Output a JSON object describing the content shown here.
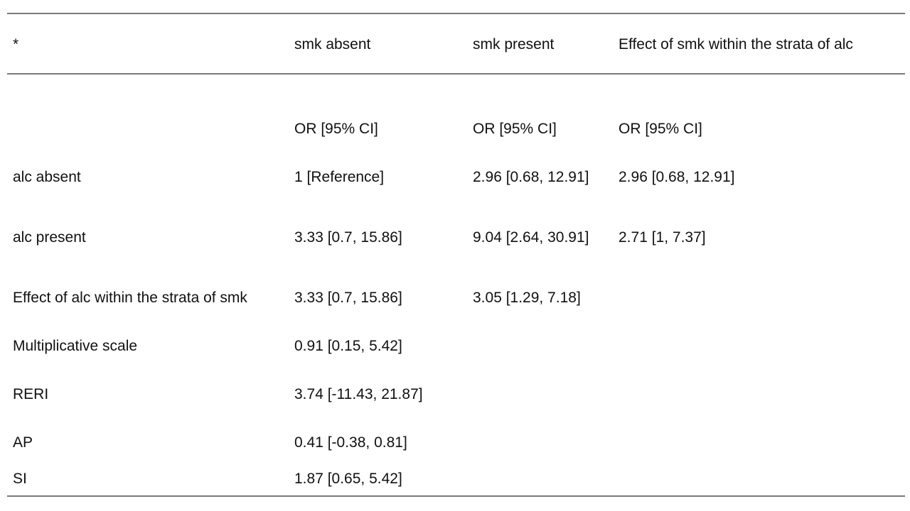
{
  "table": {
    "header": [
      "*",
      "smk absent",
      "smk present",
      "Effect of smk within the strata of alc"
    ],
    "rows": [
      [
        null,
        "OR [95% CI]",
        "OR [95% CI]",
        "OR [95% CI]"
      ],
      [
        "alc absent",
        "1 [Reference]",
        "2.96 [0.68, 12.91]",
        "2.96 [0.68, 12.91]"
      ],
      [
        "alc present",
        "3.33 [0.7, 15.86]",
        "9.04 [2.64, 30.91]",
        "2.71 [1, 7.37]"
      ],
      [
        "Effect of alc within the strata of smk",
        "3.33 [0.7, 15.86]",
        "3.05 [1.29, 7.18]",
        null
      ],
      [
        "Multiplicative scale",
        "0.91 [0.15, 5.42]",
        null,
        null
      ],
      [
        "RERI",
        "3.74 [-11.43, 21.87]",
        null,
        null
      ],
      [
        "AP",
        "0.41 [-0.38, 0.81]",
        null,
        null
      ],
      [
        "SI",
        "1.87 [0.65, 5.42]",
        null,
        null
      ]
    ]
  }
}
